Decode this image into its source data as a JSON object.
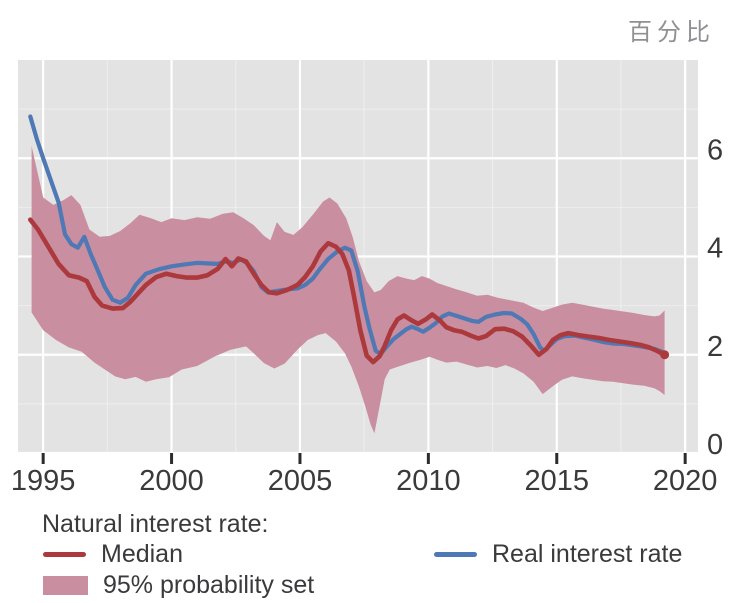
{
  "unit_label": "百分比",
  "legend": {
    "title": "Natural interest rate:",
    "median_label": "Median",
    "band_label": "95% probability set",
    "real_rate_label": "Real interest rate"
  },
  "chart_data": {
    "type": "line",
    "title": "",
    "ylabel_unit": "百分比",
    "xlabel": "",
    "x_domain": [
      1994.02,
      2020.5
    ],
    "ylim": [
      0,
      8
    ],
    "x_ticks": [
      1995,
      2000,
      2005,
      2010,
      2015,
      2020
    ],
    "x_tick_labels": [
      "1995",
      "2000",
      "2005",
      "2010",
      "2015",
      "2020"
    ],
    "y_ticks": [
      0,
      2,
      4,
      6
    ],
    "y_tick_labels": [
      "0",
      "2",
      "4",
      "6"
    ],
    "x_minor": [
      1997.5,
      2002.5,
      2007.5,
      2012.5,
      2017.5
    ],
    "y_minor": [
      1,
      3,
      5,
      7
    ],
    "grid": true,
    "legend_position": "bottom",
    "colors": {
      "panel": "#e3e3e3",
      "grid": "#ffffff",
      "median": "#ac3a3d",
      "real_rate": "#4e79b5",
      "band": "#c98fa1",
      "text": "#3a3a3c",
      "unit_text": "#8f9093"
    },
    "series": [
      {
        "name": "95% probability set",
        "type": "band",
        "color": "#c98fa1",
        "upper": [
          [
            1994.55,
            6.25
          ],
          [
            1995,
            5.2
          ],
          [
            1995.4,
            5.05
          ],
          [
            1995.8,
            5.15
          ],
          [
            1996.1,
            5.25
          ],
          [
            1996.45,
            5.05
          ],
          [
            1996.8,
            4.55
          ],
          [
            1997.2,
            4.4
          ],
          [
            1997.6,
            4.42
          ],
          [
            1998,
            4.52
          ],
          [
            1998.4,
            4.68
          ],
          [
            1998.75,
            4.85
          ],
          [
            1999.2,
            4.78
          ],
          [
            1999.6,
            4.7
          ],
          [
            2000,
            4.78
          ],
          [
            2000.5,
            4.74
          ],
          [
            2001,
            4.8
          ],
          [
            2001.5,
            4.77
          ],
          [
            2002,
            4.87
          ],
          [
            2002.4,
            4.9
          ],
          [
            2002.8,
            4.78
          ],
          [
            2003.2,
            4.64
          ],
          [
            2003.6,
            4.42
          ],
          [
            2003.85,
            4.33
          ],
          [
            2004.1,
            4.7
          ],
          [
            2004.4,
            4.5
          ],
          [
            2004.75,
            4.44
          ],
          [
            2005.1,
            4.6
          ],
          [
            2005.5,
            4.85
          ],
          [
            2005.9,
            5.12
          ],
          [
            2006.15,
            5.2
          ],
          [
            2006.45,
            5.08
          ],
          [
            2006.8,
            4.78
          ],
          [
            2007.05,
            4.4
          ],
          [
            2007.3,
            3.9
          ],
          [
            2007.6,
            3.5
          ],
          [
            2007.9,
            3.27
          ],
          [
            2008.15,
            3.32
          ],
          [
            2008.45,
            3.5
          ],
          [
            2008.8,
            3.6
          ],
          [
            2009.15,
            3.55
          ],
          [
            2009.45,
            3.52
          ],
          [
            2009.75,
            3.6
          ],
          [
            2010.05,
            3.55
          ],
          [
            2010.35,
            3.46
          ],
          [
            2010.7,
            3.4
          ],
          [
            2011.1,
            3.33
          ],
          [
            2011.5,
            3.27
          ],
          [
            2011.9,
            3.2
          ],
          [
            2012.3,
            3.22
          ],
          [
            2012.7,
            3.16
          ],
          [
            2013.1,
            3.12
          ],
          [
            2013.7,
            3.06
          ],
          [
            2014.1,
            2.96
          ],
          [
            2014.45,
            2.89
          ],
          [
            2014.8,
            2.95
          ],
          [
            2015.2,
            3.02
          ],
          [
            2015.6,
            3.06
          ],
          [
            2016,
            3.02
          ],
          [
            2016.4,
            2.98
          ],
          [
            2016.8,
            2.94
          ],
          [
            2017.2,
            2.91
          ],
          [
            2017.6,
            2.88
          ],
          [
            2018,
            2.85
          ],
          [
            2018.4,
            2.81
          ],
          [
            2018.8,
            2.78
          ],
          [
            2019,
            2.8
          ],
          [
            2019.2,
            2.9
          ]
        ],
        "lower": [
          [
            1994.55,
            2.86
          ],
          [
            1995,
            2.5
          ],
          [
            1995.5,
            2.3
          ],
          [
            1996,
            2.15
          ],
          [
            1996.5,
            2.06
          ],
          [
            1997,
            1.84
          ],
          [
            1997.4,
            1.7
          ],
          [
            1997.8,
            1.56
          ],
          [
            1998.2,
            1.5
          ],
          [
            1998.6,
            1.55
          ],
          [
            1999,
            1.45
          ],
          [
            1999.4,
            1.5
          ],
          [
            1999.9,
            1.54
          ],
          [
            2000.4,
            1.7
          ],
          [
            2001,
            1.77
          ],
          [
            2001.7,
            1.97
          ],
          [
            2002.3,
            2.1
          ],
          [
            2002.9,
            2.17
          ],
          [
            2003.2,
            2.03
          ],
          [
            2003.6,
            1.83
          ],
          [
            2004,
            1.72
          ],
          [
            2004.4,
            1.82
          ],
          [
            2004.9,
            2.1
          ],
          [
            2005.3,
            2.3
          ],
          [
            2005.7,
            2.4
          ],
          [
            2006,
            2.44
          ],
          [
            2006.4,
            2.27
          ],
          [
            2006.75,
            2.03
          ],
          [
            2007,
            1.76
          ],
          [
            2007.3,
            1.35
          ],
          [
            2007.55,
            0.94
          ],
          [
            2007.75,
            0.58
          ],
          [
            2007.9,
            0.4
          ],
          [
            2008.1,
            0.95
          ],
          [
            2008.3,
            1.5
          ],
          [
            2008.5,
            1.7
          ],
          [
            2008.9,
            1.77
          ],
          [
            2009.3,
            1.84
          ],
          [
            2009.7,
            1.9
          ],
          [
            2010.05,
            1.96
          ],
          [
            2010.35,
            1.9
          ],
          [
            2010.7,
            1.84
          ],
          [
            2011.1,
            1.86
          ],
          [
            2011.5,
            1.8
          ],
          [
            2011.9,
            1.74
          ],
          [
            2012.3,
            1.77
          ],
          [
            2012.65,
            1.73
          ],
          [
            2013,
            1.79
          ],
          [
            2013.35,
            1.72
          ],
          [
            2013.7,
            1.62
          ],
          [
            2014.1,
            1.45
          ],
          [
            2014.45,
            1.2
          ],
          [
            2014.9,
            1.38
          ],
          [
            2015.2,
            1.49
          ],
          [
            2015.6,
            1.56
          ],
          [
            2016,
            1.52
          ],
          [
            2016.4,
            1.49
          ],
          [
            2016.8,
            1.46
          ],
          [
            2017.2,
            1.45
          ],
          [
            2017.6,
            1.42
          ],
          [
            2018,
            1.39
          ],
          [
            2018.4,
            1.37
          ],
          [
            2018.8,
            1.32
          ],
          [
            2019,
            1.26
          ],
          [
            2019.2,
            1.18
          ]
        ]
      },
      {
        "name": "Real interest rate",
        "type": "line",
        "color": "#4e79b5",
        "points": [
          [
            1994.5,
            6.85
          ],
          [
            1994.75,
            6.4
          ],
          [
            1995,
            6.0
          ],
          [
            1995.3,
            5.55
          ],
          [
            1995.6,
            5.1
          ],
          [
            1995.85,
            4.45
          ],
          [
            1996.1,
            4.25
          ],
          [
            1996.35,
            4.18
          ],
          [
            1996.6,
            4.4
          ],
          [
            1996.85,
            4.05
          ],
          [
            1997.1,
            3.75
          ],
          [
            1997.4,
            3.38
          ],
          [
            1997.7,
            3.12
          ],
          [
            1998,
            3.06
          ],
          [
            1998.3,
            3.16
          ],
          [
            1998.6,
            3.42
          ],
          [
            1999,
            3.65
          ],
          [
            1999.5,
            3.74
          ],
          [
            2000,
            3.8
          ],
          [
            2000.5,
            3.84
          ],
          [
            2001,
            3.87
          ],
          [
            2001.4,
            3.86
          ],
          [
            2001.8,
            3.85
          ],
          [
            2002.1,
            3.9
          ],
          [
            2002.4,
            3.87
          ],
          [
            2002.7,
            3.94
          ],
          [
            2002.95,
            3.86
          ],
          [
            2003.2,
            3.7
          ],
          [
            2003.5,
            3.38
          ],
          [
            2003.75,
            3.27
          ],
          [
            2004.1,
            3.3
          ],
          [
            2004.5,
            3.33
          ],
          [
            2004.9,
            3.35
          ],
          [
            2005.2,
            3.42
          ],
          [
            2005.5,
            3.55
          ],
          [
            2005.8,
            3.76
          ],
          [
            2006.1,
            3.95
          ],
          [
            2006.45,
            4.1
          ],
          [
            2006.75,
            4.18
          ],
          [
            2007,
            4.12
          ],
          [
            2007.25,
            3.7
          ],
          [
            2007.5,
            3.0
          ],
          [
            2007.7,
            2.55
          ],
          [
            2007.95,
            2.08
          ],
          [
            2008.15,
            2.02
          ],
          [
            2008.4,
            2.18
          ],
          [
            2008.65,
            2.32
          ],
          [
            2008.9,
            2.42
          ],
          [
            2009.15,
            2.52
          ],
          [
            2009.35,
            2.57
          ],
          [
            2009.6,
            2.52
          ],
          [
            2009.8,
            2.47
          ],
          [
            2010.05,
            2.55
          ],
          [
            2010.3,
            2.65
          ],
          [
            2010.55,
            2.78
          ],
          [
            2010.8,
            2.84
          ],
          [
            2011.1,
            2.79
          ],
          [
            2011.4,
            2.74
          ],
          [
            2011.7,
            2.69
          ],
          [
            2011.95,
            2.67
          ],
          [
            2012.25,
            2.77
          ],
          [
            2012.6,
            2.82
          ],
          [
            2012.95,
            2.85
          ],
          [
            2013.25,
            2.84
          ],
          [
            2013.6,
            2.73
          ],
          [
            2013.85,
            2.62
          ],
          [
            2014.1,
            2.42
          ],
          [
            2014.35,
            2.15
          ],
          [
            2014.5,
            2.08
          ],
          [
            2014.75,
            2.2
          ],
          [
            2015,
            2.32
          ],
          [
            2015.3,
            2.38
          ],
          [
            2015.7,
            2.39
          ],
          [
            2016.05,
            2.35
          ],
          [
            2016.4,
            2.31
          ],
          [
            2016.8,
            2.26
          ],
          [
            2017.2,
            2.23
          ],
          [
            2017.6,
            2.22
          ],
          [
            2018,
            2.19
          ],
          [
            2018.4,
            2.16
          ],
          [
            2018.8,
            2.12
          ],
          [
            2019.2,
            2.04
          ]
        ]
      },
      {
        "name": "Median",
        "type": "line",
        "color": "#ac3a3d",
        "end_dot": true,
        "points": [
          [
            1994.5,
            4.75
          ],
          [
            1994.8,
            4.55
          ],
          [
            1995.2,
            4.2
          ],
          [
            1995.6,
            3.85
          ],
          [
            1996,
            3.62
          ],
          [
            1996.4,
            3.57
          ],
          [
            1996.7,
            3.5
          ],
          [
            1997,
            3.18
          ],
          [
            1997.3,
            3.0
          ],
          [
            1997.7,
            2.94
          ],
          [
            1998.1,
            2.95
          ],
          [
            1998.4,
            3.08
          ],
          [
            1998.7,
            3.25
          ],
          [
            1999,
            3.42
          ],
          [
            1999.4,
            3.58
          ],
          [
            1999.8,
            3.65
          ],
          [
            2000.2,
            3.6
          ],
          [
            2000.6,
            3.57
          ],
          [
            2001,
            3.57
          ],
          [
            2001.4,
            3.62
          ],
          [
            2001.8,
            3.75
          ],
          [
            2002.1,
            3.95
          ],
          [
            2002.35,
            3.8
          ],
          [
            2002.6,
            3.96
          ],
          [
            2002.9,
            3.9
          ],
          [
            2003.2,
            3.65
          ],
          [
            2003.5,
            3.42
          ],
          [
            2003.8,
            3.27
          ],
          [
            2004.1,
            3.25
          ],
          [
            2004.5,
            3.32
          ],
          [
            2004.9,
            3.42
          ],
          [
            2005.2,
            3.58
          ],
          [
            2005.5,
            3.8
          ],
          [
            2005.8,
            4.1
          ],
          [
            2006.1,
            4.27
          ],
          [
            2006.4,
            4.2
          ],
          [
            2006.65,
            4.05
          ],
          [
            2006.9,
            3.72
          ],
          [
            2007.1,
            3.2
          ],
          [
            2007.35,
            2.5
          ],
          [
            2007.6,
            1.98
          ],
          [
            2007.85,
            1.85
          ],
          [
            2008.1,
            1.97
          ],
          [
            2008.3,
            2.18
          ],
          [
            2008.55,
            2.5
          ],
          [
            2008.8,
            2.72
          ],
          [
            2009.05,
            2.8
          ],
          [
            2009.35,
            2.7
          ],
          [
            2009.6,
            2.63
          ],
          [
            2009.9,
            2.72
          ],
          [
            2010.15,
            2.82
          ],
          [
            2010.45,
            2.7
          ],
          [
            2010.7,
            2.56
          ],
          [
            2011,
            2.5
          ],
          [
            2011.3,
            2.47
          ],
          [
            2011.65,
            2.39
          ],
          [
            2011.95,
            2.33
          ],
          [
            2012.25,
            2.38
          ],
          [
            2012.6,
            2.52
          ],
          [
            2012.95,
            2.53
          ],
          [
            2013.3,
            2.48
          ],
          [
            2013.65,
            2.37
          ],
          [
            2014,
            2.18
          ],
          [
            2014.3,
            2.0
          ],
          [
            2014.6,
            2.12
          ],
          [
            2014.85,
            2.3
          ],
          [
            2015.15,
            2.4
          ],
          [
            2015.45,
            2.44
          ],
          [
            2015.85,
            2.4
          ],
          [
            2016.25,
            2.37
          ],
          [
            2016.65,
            2.34
          ],
          [
            2017.05,
            2.3
          ],
          [
            2017.45,
            2.27
          ],
          [
            2017.85,
            2.24
          ],
          [
            2018.25,
            2.2
          ],
          [
            2018.6,
            2.15
          ],
          [
            2018.9,
            2.08
          ],
          [
            2019.2,
            2.0
          ]
        ]
      }
    ]
  }
}
